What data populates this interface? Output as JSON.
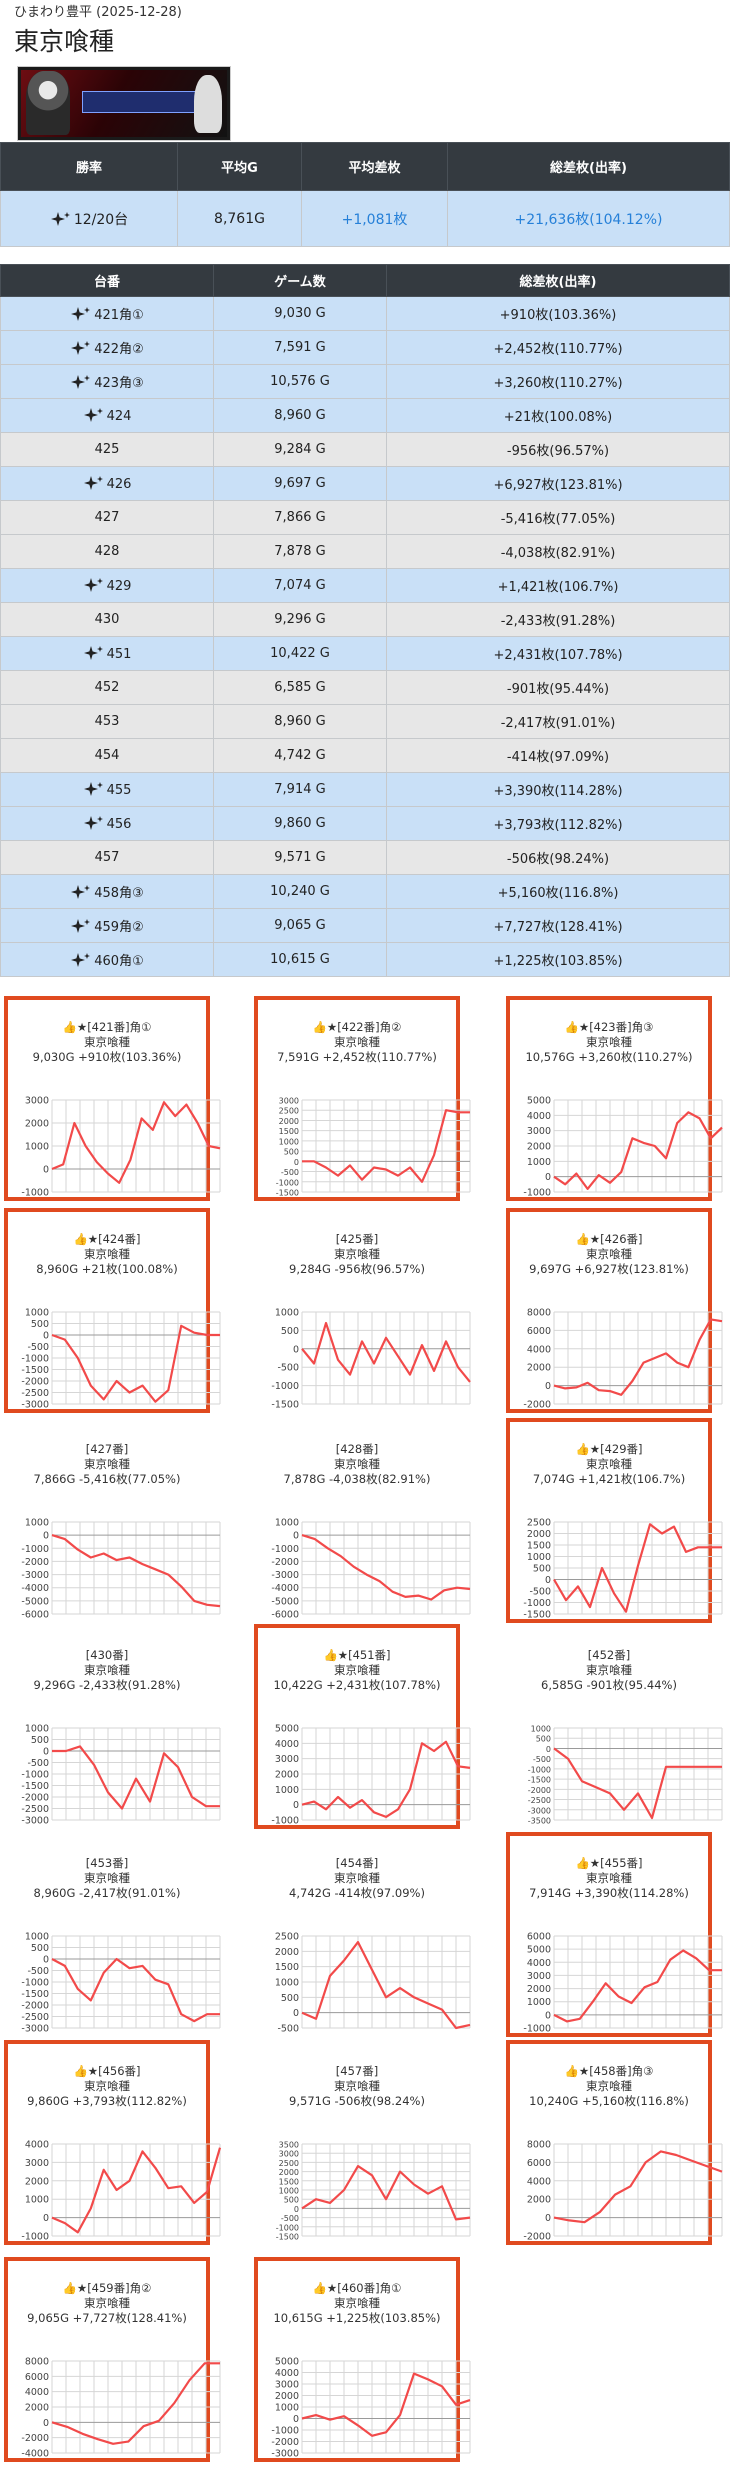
{
  "header": {
    "subtitle": "ひまわり豊平 (2025-12-28)",
    "title": "東京喰種"
  },
  "banner": {
    "alt": "東京喰種 banner"
  },
  "summary": {
    "headers": [
      "勝率",
      "平均G",
      "平均差枚",
      "総差枚(出率)"
    ],
    "win_rate": "12/20台",
    "avg_games": "8,761G",
    "avg_diff": "+1,081枚",
    "total_diff": "+21,636枚(104.12%)"
  },
  "detail": {
    "headers": [
      "台番",
      "ゲーム数",
      "総差枚(出率)"
    ],
    "rows": [
      {
        "id": "421角①",
        "games": "9,030 G",
        "diff": "+910枚(103.36%)",
        "win": true
      },
      {
        "id": "422角②",
        "games": "7,591 G",
        "diff": "+2,452枚(110.77%)",
        "win": true
      },
      {
        "id": "423角③",
        "games": "10,576 G",
        "diff": "+3,260枚(110.27%)",
        "win": true
      },
      {
        "id": "424",
        "games": "8,960 G",
        "diff": "+21枚(100.08%)",
        "win": true
      },
      {
        "id": "425",
        "games": "9,284 G",
        "diff": "-956枚(96.57%)",
        "win": false
      },
      {
        "id": "426",
        "games": "9,697 G",
        "diff": "+6,927枚(123.81%)",
        "win": true
      },
      {
        "id": "427",
        "games": "7,866 G",
        "diff": "-5,416枚(77.05%)",
        "win": false
      },
      {
        "id": "428",
        "games": "7,878 G",
        "diff": "-4,038枚(82.91%)",
        "win": false
      },
      {
        "id": "429",
        "games": "7,074 G",
        "diff": "+1,421枚(106.7%)",
        "win": true
      },
      {
        "id": "430",
        "games": "9,296 G",
        "diff": "-2,433枚(91.28%)",
        "win": false
      },
      {
        "id": "451",
        "games": "10,422 G",
        "diff": "+2,431枚(107.78%)",
        "win": true
      },
      {
        "id": "452",
        "games": "6,585 G",
        "diff": "-901枚(95.44%)",
        "win": false
      },
      {
        "id": "453",
        "games": "8,960 G",
        "diff": "-2,417枚(91.01%)",
        "win": false
      },
      {
        "id": "454",
        "games": "4,742 G",
        "diff": "-414枚(97.09%)",
        "win": false
      },
      {
        "id": "455",
        "games": "7,914 G",
        "diff": "+3,390枚(114.28%)",
        "win": true
      },
      {
        "id": "456",
        "games": "9,860 G",
        "diff": "+3,793枚(112.82%)",
        "win": true
      },
      {
        "id": "457",
        "games": "9,571 G",
        "diff": "-506枚(98.24%)",
        "win": false
      },
      {
        "id": "458角③",
        "games": "10,240 G",
        "diff": "+5,160枚(116.8%)",
        "win": true
      },
      {
        "id": "459角②",
        "games": "9,065 G",
        "diff": "+7,727枚(128.41%)",
        "win": true
      },
      {
        "id": "460角①",
        "games": "10,615 G",
        "diff": "+1,225枚(103.85%)",
        "win": true
      }
    ]
  },
  "cards": [
    {
      "head": "👍★[421番]角①",
      "name": "東京喰種",
      "stat": "9,030G +910枚(103.36%)",
      "win": true,
      "ticks": [
        3000,
        2000,
        1000,
        0,
        -1000
      ],
      "values": [
        0,
        200,
        2000,
        1000,
        300,
        -200,
        -600,
        400,
        2200,
        1700,
        2900,
        2300,
        2800,
        2000,
        1000,
        900
      ]
    },
    {
      "head": "👍★[422番]角②",
      "name": "東京喰種",
      "stat": "7,591G +2,452枚(110.77%)",
      "win": true,
      "ticks": [
        3000,
        2500,
        2000,
        1500,
        1000,
        500,
        0,
        -500,
        -1000,
        -1500
      ],
      "values": [
        0,
        0,
        -300,
        -700,
        -200,
        -900,
        -300,
        -400,
        -700,
        -300,
        -1000,
        300,
        2500,
        2400,
        2400
      ]
    },
    {
      "head": "👍★[423番]角③",
      "name": "東京喰種",
      "stat": "10,576G +3,260枚(110.27%)",
      "win": true,
      "ticks": [
        5000,
        4000,
        3000,
        2000,
        1000,
        0,
        -1000
      ],
      "values": [
        0,
        -500,
        200,
        -800,
        100,
        -400,
        300,
        2500,
        2200,
        2000,
        1200,
        3500,
        4200,
        3800,
        2500,
        3200
      ]
    },
    {
      "head": "👍★[424番]",
      "name": "東京喰種",
      "stat": "8,960G +21枚(100.08%)",
      "win": true,
      "ticks": [
        1000,
        500,
        0,
        -500,
        -1000,
        -1500,
        -2000,
        -2500,
        -3000
      ],
      "values": [
        0,
        -200,
        -1000,
        -2200,
        -2800,
        -2000,
        -2500,
        -2200,
        -2900,
        -2400,
        400,
        100,
        0,
        0
      ]
    },
    {
      "head": "[425番]",
      "name": "東京喰種",
      "stat": "9,284G -956枚(96.57%)",
      "win": false,
      "ticks": [
        1000,
        500,
        0,
        -500,
        -1000,
        -1500
      ],
      "values": [
        0,
        -400,
        700,
        -300,
        -700,
        200,
        -400,
        300,
        -200,
        -700,
        100,
        -600,
        200,
        -500,
        -900
      ]
    },
    {
      "head": "👍★[426番]",
      "name": "東京喰種",
      "stat": "9,697G +6,927枚(123.81%)",
      "win": true,
      "ticks": [
        8000,
        6000,
        4000,
        2000,
        0,
        -2000
      ],
      "values": [
        0,
        -300,
        -200,
        300,
        -500,
        -600,
        -1000,
        500,
        2500,
        3000,
        3500,
        2500,
        2000,
        5000,
        7200,
        7000
      ]
    },
    {
      "head": "[427番]",
      "name": "東京喰種",
      "stat": "7,866G -5,416枚(77.05%)",
      "win": false,
      "ticks": [
        1000,
        0,
        -1000,
        -2000,
        -3000,
        -4000,
        -5000,
        -6000
      ],
      "values": [
        0,
        -300,
        -1100,
        -1700,
        -1400,
        -1900,
        -1700,
        -2200,
        -2600,
        -3000,
        -3900,
        -5000,
        -5300,
        -5400
      ]
    },
    {
      "head": "[428番]",
      "name": "東京喰種",
      "stat": "7,878G -4,038枚(82.91%)",
      "win": false,
      "ticks": [
        1000,
        0,
        -1000,
        -2000,
        -3000,
        -4000,
        -5000,
        -6000
      ],
      "values": [
        0,
        -300,
        -1000,
        -1600,
        -2400,
        -3000,
        -3500,
        -4300,
        -4700,
        -4600,
        -4900,
        -4200,
        -4000,
        -4100
      ]
    },
    {
      "head": "👍★[429番]",
      "name": "東京喰種",
      "stat": "7,074G +1,421枚(106.7%)",
      "win": true,
      "ticks": [
        2500,
        2000,
        1500,
        1000,
        500,
        0,
        -500,
        -1000,
        -1500
      ],
      "values": [
        0,
        -900,
        -300,
        -1200,
        500,
        -600,
        -1400,
        600,
        2400,
        2000,
        2300,
        1200,
        1400,
        1400,
        1400
      ]
    },
    {
      "head": "[430番]",
      "name": "東京喰種",
      "stat": "9,296G -2,433枚(91.28%)",
      "win": false,
      "ticks": [
        1000,
        500,
        0,
        -500,
        -1000,
        -1500,
        -2000,
        -2500,
        -3000
      ],
      "values": [
        0,
        0,
        200,
        -600,
        -1800,
        -2500,
        -1200,
        -2200,
        -100,
        -700,
        -2000,
        -2400,
        -2400
      ]
    },
    {
      "head": "👍★[451番]",
      "name": "東京喰種",
      "stat": "10,422G +2,431枚(107.78%)",
      "win": true,
      "ticks": [
        5000,
        4000,
        3000,
        2000,
        1000,
        0,
        -1000
      ],
      "values": [
        0,
        200,
        -300,
        500,
        -200,
        300,
        -500,
        -800,
        -300,
        1000,
        4000,
        3500,
        4100,
        2500,
        2400
      ]
    },
    {
      "head": "[452番]",
      "name": "東京喰種",
      "stat": "6,585G -901枚(95.44%)",
      "win": false,
      "ticks": [
        1000,
        500,
        0,
        -500,
        -1000,
        -1500,
        -2000,
        -2500,
        -3000,
        -3500
      ],
      "values": [
        0,
        -500,
        -1600,
        -1900,
        -2200,
        -3000,
        -2200,
        -3400,
        -900,
        -900,
        -900,
        -900,
        -900
      ]
    },
    {
      "head": "[453番]",
      "name": "東京喰種",
      "stat": "8,960G -2,417枚(91.01%)",
      "win": false,
      "ticks": [
        1000,
        500,
        0,
        -500,
        -1000,
        -1500,
        -2000,
        -2500,
        -3000
      ],
      "values": [
        0,
        -300,
        -1300,
        -1800,
        -600,
        0,
        -400,
        -300,
        -900,
        -1100,
        -2400,
        -2700,
        -2400,
        -2400
      ]
    },
    {
      "head": "[454番]",
      "name": "東京喰種",
      "stat": "4,742G -414枚(97.09%)",
      "win": false,
      "ticks": [
        2500,
        2000,
        1500,
        1000,
        500,
        0,
        -500
      ],
      "values": [
        0,
        -200,
        1200,
        1700,
        2300,
        1400,
        500,
        800,
        500,
        300,
        100,
        -500,
        -400
      ]
    },
    {
      "head": "👍★[455番]",
      "name": "東京喰種",
      "stat": "7,914G +3,390枚(114.28%)",
      "win": true,
      "ticks": [
        6000,
        5000,
        4000,
        3000,
        2000,
        1000,
        0,
        -1000
      ],
      "values": [
        0,
        -500,
        -300,
        1000,
        2400,
        1400,
        900,
        2100,
        2500,
        4200,
        4900,
        4300,
        3400,
        3400
      ]
    },
    {
      "head": "👍★[456番]",
      "name": "東京喰種",
      "stat": "9,860G +3,793枚(112.82%)",
      "win": true,
      "ticks": [
        4000,
        3000,
        2000,
        1000,
        0,
        -1000
      ],
      "values": [
        0,
        -300,
        -800,
        500,
        2600,
        1500,
        2000,
        3600,
        2700,
        1600,
        1700,
        800,
        1400,
        3800
      ]
    },
    {
      "head": "[457番]",
      "name": "東京喰種",
      "stat": "9,571G -506枚(98.24%)",
      "win": false,
      "ticks": [
        3500,
        3000,
        2500,
        2000,
        1500,
        1000,
        500,
        0,
        -500,
        -1000,
        -1500
      ],
      "values": [
        0,
        500,
        300,
        1000,
        2300,
        1800,
        500,
        2000,
        1300,
        800,
        1200,
        -600,
        -500
      ]
    },
    {
      "head": "👍★[458番]角③",
      "name": "東京喰種",
      "stat": "10,240G +5,160枚(116.8%)",
      "win": true,
      "ticks": [
        8000,
        6000,
        4000,
        2000,
        0,
        -2000
      ],
      "values": [
        0,
        -300,
        -500,
        600,
        2500,
        3400,
        6000,
        7200,
        6800,
        6200,
        5600,
        5000
      ]
    },
    {
      "head": "👍★[459番]角②",
      "name": "東京喰種",
      "stat": "9,065G +7,727枚(128.41%)",
      "win": true,
      "ticks": [
        8000,
        6000,
        4000,
        2000,
        0,
        -2000,
        -4000
      ],
      "values": [
        0,
        -600,
        -1500,
        -2200,
        -2800,
        -2500,
        -500,
        200,
        2500,
        5500,
        7700,
        7700
      ]
    },
    {
      "head": "👍★[460番]角①",
      "name": "東京喰種",
      "stat": "10,615G +1,225枚(103.85%)",
      "win": true,
      "ticks": [
        5000,
        4000,
        3000,
        2000,
        1000,
        0,
        -1000,
        -2000,
        -3000
      ],
      "values": [
        0,
        300,
        -100,
        200,
        -600,
        -1500,
        -1200,
        300,
        3900,
        3400,
        2800,
        1200,
        1600
      ]
    }
  ]
}
